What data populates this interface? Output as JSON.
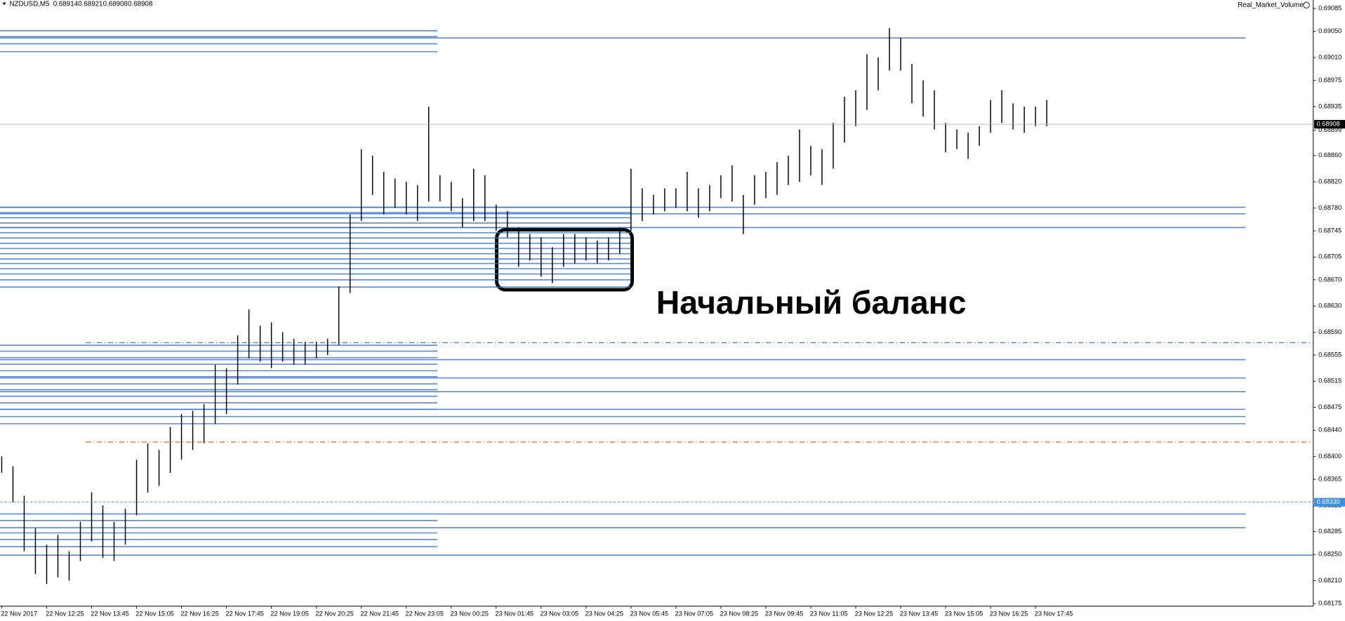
{
  "chart_data": {
    "type": "ohlc-range",
    "header": {
      "symbol": "NZDUSD,M5",
      "ohlc": [
        0.68914,
        0.68921,
        0.68908,
        0.68908
      ]
    },
    "indicator": "Real_Market_Volume",
    "annotation": "Начальный баланс",
    "categories": [
      "22 Nov 2017",
      "22 Nov 12:25",
      "22 Nov 13:45",
      "22 Nov 15:05",
      "22 Nov 16:25",
      "22 Nov 17:45",
      "22 Nov 19:05",
      "22 Nov 20:25",
      "22 Nov 21:45",
      "22 Nov 23:05",
      "23 Nov 00:25",
      "23 Nov 01:45",
      "23 Nov 03:05",
      "23 Nov 04:25",
      "23 Nov 05:45",
      "23 Nov 07:05",
      "23 Nov 08:25",
      "23 Nov 09:45",
      "23 Nov 11:05",
      "23 Nov 12:25",
      "23 Nov 13:45",
      "23 Nov 15:05",
      "23 Nov 16:25",
      "23 Nov 17:45"
    ],
    "bars_per_category": 4,
    "color": "#000000",
    "low": [
      0.68375,
      0.6833,
      0.68255,
      0.6822,
      0.68205,
      0.68215,
      0.6821,
      0.6824,
      0.6827,
      0.68245,
      0.6824,
      0.68265,
      0.6831,
      0.68345,
      0.68355,
      0.68375,
      0.68395,
      0.6841,
      0.6842,
      0.6845,
      0.68465,
      0.6851,
      0.6855,
      0.68545,
      0.68535,
      0.68545,
      0.6854,
      0.6854,
      0.6855,
      0.68555,
      0.6857,
      0.6865,
      0.6876,
      0.688,
      0.6877,
      0.6878,
      0.6877,
      0.6876,
      0.6879,
      0.6879,
      0.68775,
      0.6875,
      0.6876,
      0.6876,
      0.68745,
      0.68735,
      0.6869,
      0.687,
      0.68675,
      0.68665,
      0.6869,
      0.68695,
      0.687,
      0.68695,
      0.687,
      0.6871,
      0.68745,
      0.6876,
      0.6877,
      0.68775,
      0.6878,
      0.68775,
      0.68765,
      0.68775,
      0.68795,
      0.6879,
      0.6874,
      0.68785,
      0.68795,
      0.688,
      0.68815,
      0.6882,
      0.6883,
      0.68815,
      0.6884,
      0.6888,
      0.68905,
      0.6893,
      0.6896,
      0.6899,
      0.6899,
      0.6894,
      0.6892,
      0.689,
      0.68865,
      0.6887,
      0.68855,
      0.68875,
      0.68895,
      0.6891,
      0.689,
      0.68895,
      0.68905,
      0.68905
    ],
    "high": [
      0.684,
      0.68385,
      0.6834,
      0.6829,
      0.68265,
      0.6828,
      0.68255,
      0.683,
      0.68345,
      0.68325,
      0.683,
      0.6832,
      0.68395,
      0.6842,
      0.6841,
      0.68445,
      0.68465,
      0.6847,
      0.6848,
      0.6854,
      0.68535,
      0.68585,
      0.68625,
      0.686,
      0.68605,
      0.6859,
      0.6858,
      0.68575,
      0.68575,
      0.6858,
      0.6866,
      0.6877,
      0.6887,
      0.6886,
      0.68835,
      0.68825,
      0.6882,
      0.68815,
      0.68935,
      0.6883,
      0.6882,
      0.68795,
      0.6884,
      0.6883,
      0.68785,
      0.68775,
      0.6875,
      0.6874,
      0.68735,
      0.6872,
      0.6874,
      0.6874,
      0.68735,
      0.6873,
      0.68735,
      0.6875,
      0.6884,
      0.6881,
      0.688,
      0.6881,
      0.6881,
      0.68835,
      0.6881,
      0.68815,
      0.6883,
      0.68845,
      0.688,
      0.6883,
      0.68835,
      0.6885,
      0.6886,
      0.689,
      0.68875,
      0.6887,
      0.6891,
      0.6895,
      0.6896,
      0.69015,
      0.6901,
      0.69055,
      0.6904,
      0.69,
      0.68975,
      0.6896,
      0.6891,
      0.689,
      0.68895,
      0.68905,
      0.68945,
      0.6896,
      0.6894,
      0.68935,
      0.68935,
      0.68945
    ],
    "ylim": [
      0.68171,
      0.69098
    ],
    "yticks": [
      0.69085,
      {
        "value": 0.6905,
        "label": "0.69050"
      },
      {
        "value": 0.6901,
        "label": "0.69010"
      },
      0.68975,
      0.68935,
      0.68899,
      {
        "value": 0.6886,
        "label": "0.68860"
      },
      {
        "value": 0.6882,
        "label": "0.68820"
      },
      {
        "value": 0.6878,
        "label": "0.68780"
      },
      0.68745,
      0.68705,
      {
        "value": 0.6867,
        "label": "0.68670"
      },
      {
        "value": 0.6863,
        "label": "0.68630"
      },
      {
        "value": 0.6859,
        "label": "0.68590"
      },
      0.68555,
      0.68515,
      0.68475,
      {
        "value": 0.6844,
        "label": "0.68440"
      },
      {
        "value": 0.684,
        "label": "0.68400"
      },
      0.68365,
      0.68325,
      0.68285,
      {
        "value": 0.6825,
        "label": "0.68250"
      },
      {
        "value": 0.6821,
        "label": "0.68210"
      },
      0.68175
    ],
    "level_color": "#3f74c9",
    "levels_left": [
      0.69051,
      0.69042,
      0.69031,
      0.69019,
      0.6857,
      0.68561,
      0.68551,
      0.68541,
      0.68531,
      0.68522,
      0.68511,
      0.68502,
      0.68492,
      0.68482,
      0.68472,
      0.68302,
      0.68283,
      0.68273,
      0.68262
    ],
    "levels_mid": [
      0.68781,
      0.68773,
      0.68765,
      0.68757,
      0.6875,
      0.68742,
      0.68734,
      0.68726,
      0.68718,
      0.6871,
      0.68702,
      0.68695,
      0.68687,
      0.68679,
      0.6867,
      0.68659
    ],
    "levels_right": [
      0.6904,
      0.68781,
      0.68771,
      0.6875,
      0.68548,
      0.6852,
      0.68499,
      0.68472,
      0.68461,
      0.6845,
      0.68312,
      0.68291
    ],
    "levels_full": [
      0.68249
    ],
    "dashdot_lines": [
      {
        "value": 0.68574,
        "color": "#3f6a9a"
      },
      {
        "value": 0.68422,
        "color": "#e0603a"
      }
    ],
    "price_markers": [
      {
        "value": 0.68908,
        "color": "#000000",
        "line": "#b0b0b0"
      },
      {
        "value": {
          "value": 0.6833,
          "label": "0.68330"
        },
        "color": "#3f8fe0",
        "line": "#3f8fe0"
      }
    ]
  }
}
